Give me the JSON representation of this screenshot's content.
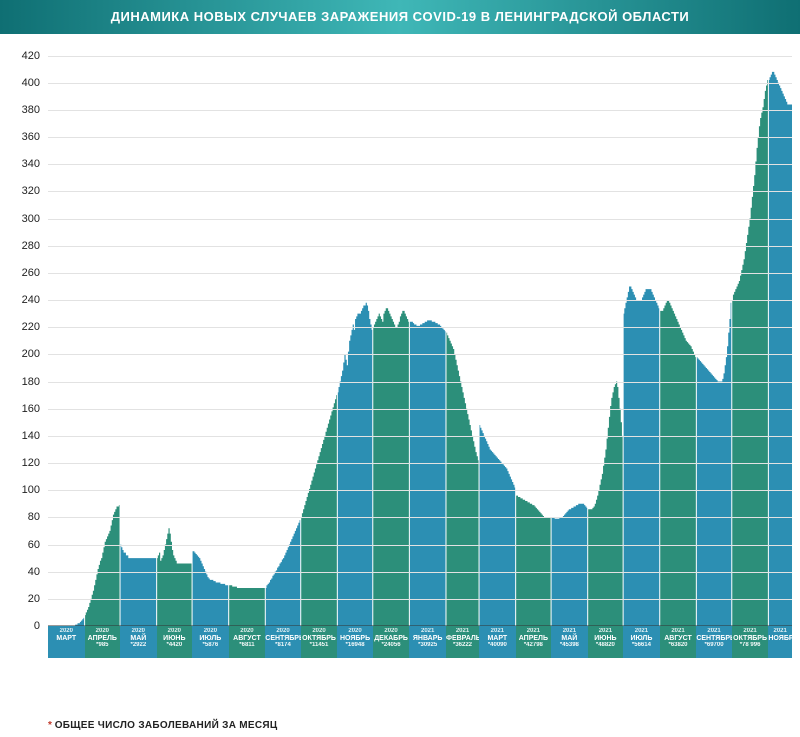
{
  "title": "ДИНАМИКА НОВЫХ СЛУЧАЕВ ЗАРАЖЕНИЯ COVID-19 В ЛЕНИНГРАДСКОЙ ОБЛАСТИ",
  "title_fontsize": 13,
  "title_bg_gradient": [
    "#0f6f73",
    "#3fb7b7",
    "#0f6f73"
  ],
  "title_color": "#ffffff",
  "footnote_star": "*",
  "footnote": "ОБЩЕЕ ЧИСЛО ЗАБОЛЕВАНИЙ ЗА МЕСЯЦ",
  "footnote_star_color": "#c0392b",
  "chart": {
    "type": "area",
    "background_color": "#ffffff",
    "grid_color": "#e2e2e2",
    "baseline_color": "#333333",
    "ylim": [
      0,
      430
    ],
    "ytick_start": 0,
    "ytick_end": 420,
    "ytick_step": 20,
    "ytick_fontsize": 11,
    "ytick_color": "#222222",
    "x_label_height": 32,
    "palette_a": "#2c8f7a",
    "palette_b": "#2c8fb3",
    "months": [
      {
        "year": "2020",
        "month": "МАРТ",
        "total": "",
        "color": "#2c8fb3",
        "values": [
          0,
          0,
          0,
          0,
          0,
          0,
          0,
          0,
          0,
          0,
          0,
          0,
          0,
          0,
          0,
          0,
          0,
          0,
          0,
          0,
          0,
          0,
          0,
          1,
          1,
          2,
          2,
          3,
          4,
          5,
          6
        ]
      },
      {
        "year": "2020",
        "month": "АПРЕЛЬ",
        "total": "*985",
        "color": "#2c8f7a",
        "values": [
          8,
          10,
          12,
          14,
          17,
          20,
          23,
          26,
          30,
          34,
          38,
          42,
          45,
          48,
          50,
          54,
          58,
          62,
          64,
          66,
          68,
          70,
          74,
          78,
          82,
          84,
          86,
          88,
          88,
          89
        ]
      },
      {
        "year": "2020",
        "month": "МАЙ",
        "total": "*2922",
        "color": "#2c8fb3",
        "values": [
          60,
          58,
          56,
          54,
          54,
          52,
          52,
          50,
          50,
          50,
          50,
          50,
          50,
          50,
          50,
          50,
          50,
          50,
          50,
          50,
          50,
          50,
          50,
          50,
          50,
          50,
          50,
          50,
          50,
          50,
          50
        ]
      },
      {
        "year": "2020",
        "month": "ИЮНЬ",
        "total": "*4420",
        "color": "#2c8f7a",
        "values": [
          50,
          52,
          54,
          48,
          50,
          52,
          56,
          60,
          64,
          68,
          72,
          68,
          62,
          56,
          52,
          50,
          48,
          46,
          46,
          46,
          46,
          46,
          46,
          46,
          46,
          46,
          46,
          46,
          46,
          46
        ]
      },
      {
        "year": "2020",
        "month": "ИЮЛЬ",
        "total": "*5876",
        "color": "#2c8fb3",
        "values": [
          55,
          55,
          54,
          53,
          52,
          51,
          50,
          48,
          46,
          44,
          42,
          40,
          38,
          36,
          35,
          34,
          34,
          34,
          33,
          33,
          32,
          32,
          32,
          32,
          31,
          31,
          31,
          31,
          30,
          30,
          30
        ]
      },
      {
        "year": "2020",
        "month": "АВГУСТ",
        "total": "*6811",
        "color": "#2c8f7a",
        "values": [
          30,
          30,
          30,
          29,
          29,
          29,
          29,
          28,
          28,
          28,
          28,
          28,
          28,
          28,
          28,
          28,
          28,
          28,
          28,
          28,
          28,
          28,
          28,
          28,
          28,
          28,
          28,
          28,
          28,
          28,
          28
        ]
      },
      {
        "year": "2020",
        "month": "СЕНТЯБРЬ",
        "total": "*8174",
        "color": "#2c8fb3",
        "values": [
          28,
          30,
          31,
          32,
          34,
          35,
          37,
          38,
          40,
          41,
          43,
          44,
          46,
          47,
          49,
          50,
          52,
          54,
          56,
          58,
          60,
          62,
          64,
          66,
          68,
          70,
          72,
          74,
          76,
          78
        ]
      },
      {
        "year": "2020",
        "month": "ОКТЯБРЬ",
        "total": "*11451",
        "color": "#2c8f7a",
        "values": [
          80,
          83,
          86,
          89,
          92,
          95,
          98,
          101,
          104,
          107,
          110,
          113,
          116,
          119,
          122,
          125,
          128,
          131,
          134,
          137,
          140,
          143,
          146,
          149,
          152,
          155,
          158,
          161,
          164,
          167,
          170
        ]
      },
      {
        "year": "2020",
        "month": "НОЯБРЬ",
        "total": "*16948",
        "color": "#2c8fb3",
        "values": [
          172,
          176,
          180,
          184,
          188,
          194,
          200,
          196,
          192,
          202,
          210,
          214,
          218,
          222,
          218,
          226,
          228,
          230,
          230,
          230,
          232,
          234,
          236,
          236,
          238,
          236,
          232,
          226,
          222,
          218
        ]
      },
      {
        "year": "2020",
        "month": "ДЕКАБРЬ",
        "total": "*24056",
        "color": "#2c8f7a",
        "values": [
          220,
          222,
          224,
          226,
          228,
          230,
          228,
          226,
          224,
          230,
          232,
          234,
          234,
          232,
          230,
          228,
          226,
          224,
          222,
          220,
          220,
          222,
          224,
          228,
          230,
          232,
          232,
          230,
          228,
          226,
          224
        ]
      },
      {
        "year": "2021",
        "month": "ЯНВАРЬ",
        "total": "*30925",
        "color": "#2c8fb3",
        "values": [
          224,
          224,
          224,
          223,
          222,
          222,
          221,
          221,
          221,
          222,
          222,
          223,
          223,
          224,
          224,
          225,
          225,
          225,
          225,
          224,
          224,
          224,
          223,
          223,
          222,
          222,
          221,
          220,
          219,
          218,
          217
        ]
      },
      {
        "year": "2021",
        "month": "ФЕВРАЛЬ",
        "total": "*36222",
        "color": "#2c8f7a",
        "values": [
          216,
          214,
          212,
          210,
          208,
          206,
          204,
          200,
          196,
          192,
          188,
          184,
          180,
          176,
          172,
          168,
          164,
          160,
          156,
          152,
          148,
          144,
          140,
          136,
          132,
          128,
          125,
          122
        ]
      },
      {
        "year": "2021",
        "month": "МАРТ",
        "total": "*40090",
        "color": "#2c8fb3",
        "values": [
          148,
          146,
          144,
          142,
          140,
          138,
          136,
          134,
          132,
          130,
          129,
          128,
          127,
          126,
          125,
          124,
          123,
          122,
          121,
          120,
          119,
          118,
          117,
          116,
          114,
          112,
          110,
          108,
          106,
          104,
          102
        ]
      },
      {
        "year": "2021",
        "month": "АПРЕЛЬ",
        "total": "*42798",
        "color": "#2c8f7a",
        "values": [
          96,
          96,
          95,
          95,
          94,
          94,
          93,
          93,
          92,
          92,
          91,
          91,
          90,
          90,
          89,
          89,
          88,
          87,
          86,
          85,
          84,
          83,
          82,
          81,
          80,
          80,
          80,
          80,
          80,
          80
        ]
      },
      {
        "year": "2021",
        "month": "МАЙ",
        "total": "*45398",
        "color": "#2c8fb3",
        "values": [
          80,
          80,
          80,
          79,
          79,
          79,
          79,
          80,
          80,
          80,
          81,
          82,
          83,
          84,
          85,
          86,
          86,
          87,
          87,
          88,
          88,
          89,
          89,
          90,
          90,
          90,
          90,
          90,
          89,
          88,
          87
        ]
      },
      {
        "year": "2021",
        "month": "ИЮНЬ",
        "total": "*48820",
        "color": "#2c8f7a",
        "values": [
          86,
          86,
          86,
          86,
          87,
          88,
          90,
          93,
          96,
          100,
          104,
          108,
          112,
          118,
          124,
          130,
          138,
          146,
          154,
          162,
          168,
          172,
          176,
          178,
          180,
          176,
          168,
          160,
          150,
          140
        ]
      },
      {
        "year": "2021",
        "month": "ИЮЛЬ",
        "total": "*56614",
        "color": "#2c8fb3",
        "values": [
          230,
          234,
          238,
          242,
          246,
          250,
          250,
          248,
          246,
          244,
          242,
          240,
          240,
          240,
          240,
          240,
          242,
          244,
          246,
          248,
          248,
          248,
          248,
          248,
          246,
          244,
          242,
          240,
          238,
          236,
          234
        ]
      },
      {
        "year": "2021",
        "month": "АВГУСТ",
        "total": "*63820",
        "color": "#2c8f7a",
        "values": [
          232,
          232,
          232,
          234,
          236,
          238,
          240,
          240,
          238,
          236,
          234,
          232,
          230,
          228,
          226,
          224,
          222,
          220,
          218,
          216,
          214,
          212,
          210,
          209,
          208,
          207,
          206,
          204,
          202,
          200,
          198
        ]
      },
      {
        "year": "2021",
        "month": "СЕНТЯБРЬ",
        "total": "*69700",
        "color": "#2c8fb3",
        "values": [
          198,
          197,
          196,
          195,
          194,
          193,
          192,
          191,
          190,
          189,
          188,
          187,
          186,
          185,
          184,
          183,
          182,
          181,
          180,
          180,
          180,
          180,
          182,
          186,
          192,
          198,
          206,
          216,
          226,
          238
        ]
      },
      {
        "year": "2021",
        "month": "ОКТЯБРЬ",
        "total": "*78 996",
        "color": "#2c8f7a",
        "values": [
          240,
          244,
          246,
          248,
          250,
          252,
          254,
          258,
          262,
          266,
          270,
          276,
          282,
          288,
          294,
          300,
          308,
          316,
          324,
          332,
          342,
          352,
          360,
          368,
          374,
          378,
          382,
          388,
          394,
          398,
          402
        ]
      },
      {
        "year": "2021",
        "month": "НОЯБРЬ",
        "total": "",
        "color": "#2c8fb3",
        "values": [
          402,
          404,
          406,
          408,
          408,
          406,
          404,
          402,
          400,
          398,
          396,
          394,
          392,
          390,
          388,
          386,
          384,
          384,
          384,
          384
        ]
      }
    ]
  }
}
